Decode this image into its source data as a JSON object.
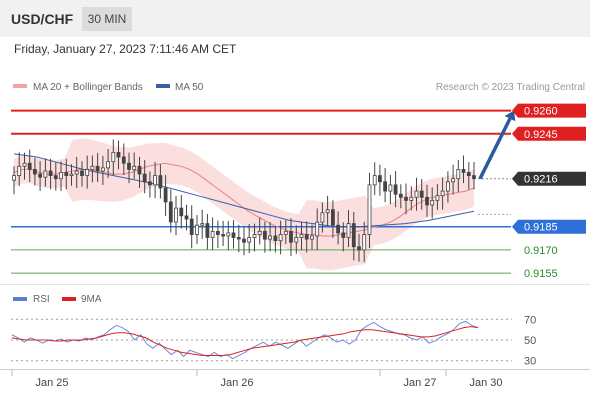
{
  "header": {
    "symbol": "USD/CHF",
    "timeframe": "30 MIN"
  },
  "timestamp": "Friday, January 27, 2023 7:11:46 AM CET",
  "chart_data": [
    {
      "type": "candlestick",
      "title": "USD/CHF",
      "legend": [
        "MA 20 + Bollinger Bands",
        "MA 50"
      ],
      "legend_placement": "top-left",
      "credit": "Research © 2023 Trading Central",
      "x_ticks": [
        "Jan 25",
        "Jan 26",
        "Jan 27",
        "Jan 30"
      ],
      "ylim": [
        0.9148,
        0.9272
      ],
      "last_price": 0.9216,
      "resistance_levels": [
        0.926,
        0.9245
      ],
      "support_levels": [
        0.9185,
        0.917,
        0.9155
      ],
      "price_labels": [
        "0.9260",
        "0.9245",
        "0.9216",
        "0.9185",
        "0.9170",
        "0.9155"
      ],
      "forecast_arrow": {
        "from": 0.9216,
        "to": 0.926
      },
      "closes": [
        0.9218,
        0.9224,
        0.9226,
        0.9222,
        0.9219,
        0.9217,
        0.9221,
        0.9218,
        0.9216,
        0.922,
        0.9218,
        0.9219,
        0.9221,
        0.9218,
        0.9222,
        0.9224,
        0.9221,
        0.9223,
        0.9227,
        0.9233,
        0.923,
        0.9226,
        0.9222,
        0.9224,
        0.9219,
        0.9214,
        0.9212,
        0.9218,
        0.921,
        0.9201,
        0.9188,
        0.9197,
        0.9192,
        0.919,
        0.918,
        0.9186,
        0.9187,
        0.9178,
        0.9182,
        0.918,
        0.9179,
        0.9181,
        0.9178,
        0.9177,
        0.9175,
        0.9178,
        0.918,
        0.9182,
        0.9177,
        0.9179,
        0.9176,
        0.918,
        0.9182,
        0.9175,
        0.9178,
        0.918,
        0.9177,
        0.9179,
        0.9188,
        0.9194,
        0.9196,
        0.9186,
        0.9181,
        0.9178,
        0.9187,
        0.9172,
        0.917,
        0.918,
        0.9212,
        0.9218,
        0.9214,
        0.9208,
        0.9212,
        0.9206,
        0.9204,
        0.9202,
        0.9204,
        0.9208,
        0.9204,
        0.9199,
        0.9202,
        0.9205,
        0.9208,
        0.9214,
        0.9216,
        0.9222,
        0.922,
        0.9218,
        0.9216
      ],
      "ma20": [
        0.922,
        0.9222,
        0.9222,
        0.922,
        0.9219,
        0.9219,
        0.922,
        0.9221,
        0.9222,
        0.9222,
        0.9221,
        0.922,
        0.9219,
        0.9219,
        0.922,
        0.9222,
        0.9224,
        0.9225,
        0.9226,
        0.9225,
        0.9224,
        0.9222,
        0.9219,
        0.9215,
        0.9211,
        0.9207,
        0.9203,
        0.9199,
        0.9195,
        0.9192,
        0.9189,
        0.9186,
        0.9184,
        0.9182,
        0.9181,
        0.918,
        0.918,
        0.9179,
        0.9179,
        0.918,
        0.9181,
        0.9182,
        0.9183,
        0.9185,
        0.9186,
        0.9188,
        0.9191,
        0.9195,
        0.9199,
        0.9202,
        0.9204,
        0.9205,
        0.9206,
        0.9207,
        0.9208,
        0.921
      ],
      "ma50": [
        0.9232,
        0.923,
        0.9226,
        0.9222,
        0.9219,
        0.9216,
        0.9213,
        0.9209,
        0.9205,
        0.9201,
        0.9197,
        0.9193,
        0.9189,
        0.9187,
        0.9185,
        0.9185,
        0.9186,
        0.9187,
        0.9189,
        0.9192,
        0.9195
      ]
    },
    {
      "type": "line",
      "legend": [
        "RSI",
        "9MA"
      ],
      "legend_placement": "top-left",
      "y_ticks": [
        70,
        50,
        30
      ],
      "ylim": [
        20,
        80
      ],
      "rsi": [
        55,
        52,
        48,
        52,
        50,
        47,
        50,
        49,
        51,
        48,
        50,
        49,
        52,
        50,
        53,
        55,
        60,
        64,
        62,
        58,
        50,
        55,
        46,
        42,
        47,
        41,
        36,
        40,
        34,
        40,
        38,
        36,
        34,
        38,
        34,
        36,
        32,
        35,
        38,
        42,
        45,
        48,
        44,
        48,
        45,
        42,
        46,
        50,
        44,
        48,
        52,
        55,
        52,
        48,
        50,
        46,
        50,
        60,
        64,
        67,
        63,
        60,
        58,
        56,
        55,
        52,
        50,
        53,
        47,
        49,
        53,
        56,
        60,
        66,
        68,
        64,
        62
      ],
      "rsi_9ma": [
        52,
        51,
        50,
        50,
        50,
        50,
        49,
        49,
        50,
        50,
        50,
        51,
        52,
        54,
        56,
        57,
        57,
        56,
        54,
        52,
        48,
        45,
        42,
        40,
        38,
        37,
        36,
        35,
        35,
        35,
        35,
        36,
        38,
        40,
        42,
        43,
        44,
        45,
        46,
        47,
        48,
        50,
        51,
        52,
        53,
        54,
        55,
        56,
        58,
        59,
        60,
        60,
        59,
        58,
        57,
        56,
        55,
        54,
        53,
        53,
        54,
        56,
        58,
        60,
        62,
        63,
        62
      ]
    }
  ],
  "colors": {
    "band": "#f9d3d3",
    "ma20": "#f08080",
    "ma50": "#3a5fa8",
    "candle": "#444444",
    "resistance": "#e02020",
    "support_main": "#2e6fd8",
    "support_minor": "#55aa55",
    "support_text": "#2c8a2c",
    "arrow": "#2b5a9e",
    "rsi": "#5b7fd6",
    "rsi_ma": "#e02020"
  }
}
